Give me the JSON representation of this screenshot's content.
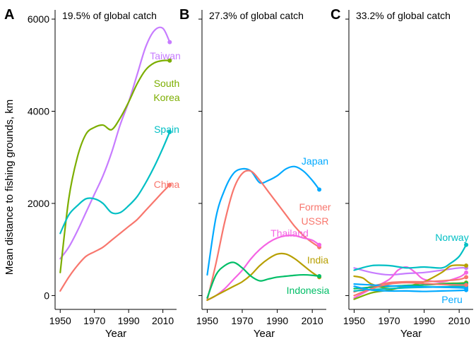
{
  "ylabel": "Mean distance to fishing grounds, km",
  "colors": {
    "taiwan": "#C77CFF",
    "korea": "#7CAE00",
    "spain": "#00BFC4",
    "china": "#F8766D",
    "japan": "#00A9FF",
    "ussr": "#F8766D",
    "thailand": "#F564E3",
    "india": "#B79F00",
    "indonesia": "#00BE67",
    "norway": "#00BFC4",
    "peru": "#00A9FF"
  },
  "chart_data": [
    {
      "type": "line",
      "panel_letter": "A",
      "annotation": "19.5% of global catch",
      "xlabel": "Year",
      "ylabel": "Mean distance to fishing grounds, km",
      "xlim": [
        1947,
        2018
      ],
      "ylim": [
        -300,
        6200
      ],
      "x_ticks": [
        1950,
        1970,
        1990,
        2010
      ],
      "y_ticks": [
        0,
        2000,
        4000,
        6000
      ],
      "series": [
        {
          "name": "Taiwan",
          "color_key": "taiwan",
          "label_lines": [
            "Taiwan"
          ],
          "end_dot": true,
          "x": [
            1950,
            1955,
            1960,
            1965,
            1970,
            1975,
            1980,
            1985,
            1990,
            1995,
            2000,
            2005,
            2010,
            2014
          ],
          "y": [
            800,
            1050,
            1400,
            1800,
            2200,
            2600,
            3100,
            3700,
            4200,
            4800,
            5400,
            5750,
            5800,
            5500
          ]
        },
        {
          "name": "South Korea",
          "color_key": "korea",
          "label_lines": [
            "South",
            "Korea"
          ],
          "end_dot": true,
          "x": [
            1950,
            1955,
            1960,
            1965,
            1970,
            1975,
            1980,
            1985,
            1990,
            1995,
            2000,
            2005,
            2010,
            2014
          ],
          "y": [
            500,
            2100,
            3000,
            3500,
            3650,
            3700,
            3600,
            3850,
            4200,
            4600,
            4900,
            5050,
            5100,
            5100
          ]
        },
        {
          "name": "Spain",
          "color_key": "spain",
          "label_lines": [
            "Spain"
          ],
          "end_dot": true,
          "x": [
            1950,
            1955,
            1960,
            1965,
            1970,
            1975,
            1980,
            1985,
            1990,
            1995,
            2000,
            2005,
            2010,
            2014
          ],
          "y": [
            1350,
            1750,
            1950,
            2100,
            2100,
            2000,
            1800,
            1800,
            1950,
            2150,
            2450,
            2800,
            3200,
            3550
          ]
        },
        {
          "name": "China",
          "color_key": "china",
          "label_lines": [
            "China"
          ],
          "end_dot": true,
          "x": [
            1950,
            1955,
            1960,
            1965,
            1970,
            1975,
            1980,
            1985,
            1990,
            1995,
            2000,
            2005,
            2010,
            2014
          ],
          "y": [
            100,
            400,
            650,
            850,
            950,
            1050,
            1200,
            1350,
            1500,
            1650,
            1850,
            2050,
            2250,
            2400
          ]
        }
      ]
    },
    {
      "type": "line",
      "panel_letter": "B",
      "annotation": "27.3% of global catch",
      "xlabel": "Year",
      "xlim": [
        1947,
        2018
      ],
      "ylim": [
        -300,
        6200
      ],
      "x_ticks": [
        1950,
        1970,
        1990,
        2010
      ],
      "y_ticks": [
        0,
        2000,
        4000,
        6000
      ],
      "series": [
        {
          "name": "Japan",
          "color_key": "japan",
          "label_lines": [
            "Japan"
          ],
          "end_dot": true,
          "x": [
            1950,
            1955,
            1960,
            1965,
            1970,
            1975,
            1980,
            1985,
            1990,
            1995,
            2000,
            2005,
            2010,
            2014
          ],
          "y": [
            450,
            1700,
            2300,
            2650,
            2750,
            2700,
            2450,
            2500,
            2600,
            2750,
            2800,
            2700,
            2500,
            2300
          ]
        },
        {
          "name": "Former USSR",
          "color_key": "ussr",
          "label_lines": [
            "Former",
            "USSR"
          ],
          "end_dot": true,
          "x": [
            1950,
            1955,
            1960,
            1965,
            1970,
            1975,
            1980,
            1985,
            1990,
            1995,
            2000,
            2005,
            2010,
            2014
          ],
          "y": [
            -100,
            700,
            1600,
            2300,
            2650,
            2700,
            2500,
            2250,
            2000,
            1750,
            1500,
            1300,
            1150,
            1050
          ]
        },
        {
          "name": "Thailand",
          "color_key": "thailand",
          "label_lines": [
            "Thailand"
          ],
          "end_dot": true,
          "x": [
            1950,
            1955,
            1960,
            1965,
            1970,
            1975,
            1980,
            1985,
            1990,
            1995,
            2000,
            2005,
            2010,
            2014
          ],
          "y": [
            -100,
            0,
            150,
            350,
            550,
            800,
            1000,
            1150,
            1250,
            1300,
            1300,
            1250,
            1200,
            1100
          ]
        },
        {
          "name": "India",
          "color_key": "india",
          "label_lines": [
            "India"
          ],
          "end_dot": true,
          "x": [
            1950,
            1955,
            1960,
            1965,
            1970,
            1975,
            1980,
            1985,
            1990,
            1995,
            2000,
            2005,
            2010,
            2014
          ],
          "y": [
            -100,
            0,
            100,
            200,
            300,
            450,
            650,
            800,
            900,
            900,
            800,
            650,
            500,
            400
          ]
        },
        {
          "name": "Indonesia",
          "color_key": "indonesia",
          "label_lines": [
            "Indonesia"
          ],
          "end_dot": true,
          "x": [
            1950,
            1955,
            1960,
            1965,
            1970,
            1975,
            1980,
            1985,
            1990,
            1995,
            2000,
            2005,
            2010,
            2014
          ],
          "y": [
            -50,
            450,
            650,
            720,
            600,
            420,
            320,
            360,
            400,
            420,
            440,
            450,
            440,
            420
          ]
        }
      ]
    },
    {
      "type": "line",
      "panel_letter": "C",
      "annotation": "33.2% of global catch",
      "xlabel": "Year",
      "xlim": [
        1947,
        2018
      ],
      "ylim": [
        -300,
        6200
      ],
      "x_ticks": [
        1950,
        1970,
        1990,
        2010
      ],
      "y_ticks": [
        0,
        2000,
        4000,
        6000
      ],
      "series": [
        {
          "name": "Norway",
          "color_key": "norway",
          "label_lines": [
            "Norway"
          ],
          "end_dot": true,
          "x": [
            1950,
            1960,
            1970,
            1980,
            1990,
            2000,
            2005,
            2010,
            2014
          ],
          "y": [
            550,
            650,
            650,
            600,
            620,
            600,
            700,
            850,
            1100
          ]
        },
        {
          "name": "Peru",
          "color_key": "peru",
          "label_lines": [
            "Peru"
          ],
          "end_dot": true,
          "x": [
            1950,
            1960,
            1970,
            1980,
            1990,
            2000,
            2010,
            2014
          ],
          "y": [
            200,
            120,
            100,
            100,
            90,
            100,
            110,
            120
          ]
        },
        {
          "name": "",
          "color_key": "taiwan",
          "end_dot": true,
          "x": [
            1950,
            1960,
            1970,
            1980,
            1990,
            2000,
            2010,
            2014
          ],
          "y": [
            600,
            500,
            450,
            480,
            500,
            550,
            600,
            600
          ]
        },
        {
          "name": "",
          "color_key": "thailand",
          "end_dot": true,
          "x": [
            1950,
            1960,
            1970,
            1975,
            1980,
            1985,
            1990,
            2000,
            2010,
            2014
          ],
          "y": [
            -50,
            150,
            350,
            550,
            620,
            500,
            350,
            300,
            400,
            500
          ]
        },
        {
          "name": "",
          "color_key": "india",
          "end_dot": true,
          "x": [
            1950,
            1955,
            1960,
            1970,
            1980,
            1990,
            2000,
            2005,
            2010,
            2014
          ],
          "y": [
            420,
            380,
            250,
            150,
            200,
            300,
            500,
            640,
            660,
            650
          ]
        },
        {
          "name": "",
          "color_key": "china",
          "end_dot": true,
          "x": [
            1950,
            1960,
            1970,
            1980,
            1990,
            2000,
            2010,
            2014
          ],
          "y": [
            80,
            200,
            280,
            300,
            300,
            320,
            350,
            400
          ]
        },
        {
          "name": "",
          "color_key": "korea",
          "end_dot": true,
          "x": [
            1950,
            1960,
            1970,
            1980,
            1990,
            2000,
            2010,
            2014
          ],
          "y": [
            -80,
            60,
            120,
            200,
            230,
            260,
            270,
            280
          ]
        },
        {
          "name": "",
          "color_key": "indonesia",
          "end_dot": true,
          "x": [
            1950,
            1960,
            1970,
            1980,
            1990,
            2000,
            2010,
            2014
          ],
          "y": [
            150,
            180,
            200,
            220,
            230,
            250,
            260,
            260
          ]
        },
        {
          "name": "",
          "color_key": "spain",
          "end_dot": true,
          "x": [
            1950,
            1960,
            1970,
            1980,
            1990,
            2000,
            2010,
            2014
          ],
          "y": [
            100,
            130,
            150,
            170,
            180,
            190,
            200,
            200
          ]
        },
        {
          "name": "",
          "color_key": "japan",
          "end_dot": true,
          "x": [
            1950,
            1960,
            1970,
            1980,
            1990,
            2000,
            2010,
            2014
          ],
          "y": [
            250,
            230,
            210,
            200,
            190,
            180,
            170,
            160
          ]
        },
        {
          "name": "",
          "color_key": "ussr",
          "end_dot": true,
          "x": [
            1950,
            1960,
            1970,
            1980,
            1990,
            2000,
            2010,
            2014
          ],
          "y": [
            0,
            150,
            250,
            280,
            260,
            240,
            230,
            230
          ]
        }
      ]
    }
  ]
}
